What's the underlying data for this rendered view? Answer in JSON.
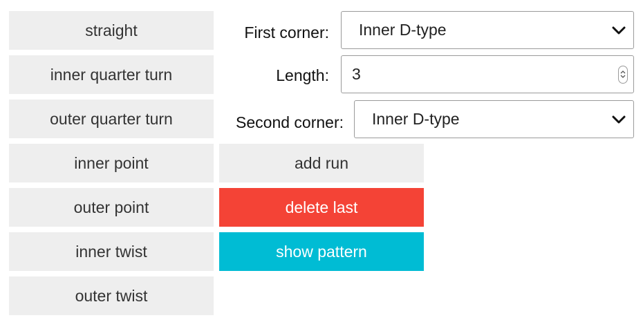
{
  "piece_buttons": [
    {
      "label": "straight"
    },
    {
      "label": "inner quarter turn"
    },
    {
      "label": "outer quarter turn"
    },
    {
      "label": "inner point"
    },
    {
      "label": "outer point"
    },
    {
      "label": "inner twist"
    },
    {
      "label": "outer twist"
    }
  ],
  "form": {
    "first_corner": {
      "label": "First corner:",
      "value": "Inner D-type"
    },
    "length": {
      "label": "Length:",
      "value": "3"
    },
    "second_corner": {
      "label": "Second corner:",
      "value": "Inner D-type"
    }
  },
  "actions": {
    "add_run": {
      "label": "add run",
      "color": "#eeeeee"
    },
    "delete_last": {
      "label": "delete last",
      "color": "#f44336"
    },
    "show_pattern": {
      "label": "show pattern",
      "color": "#00bcd4"
    }
  },
  "icons": {
    "dropdown": "chevron-down-icon",
    "stepper": "up-down-stepper-icon"
  }
}
